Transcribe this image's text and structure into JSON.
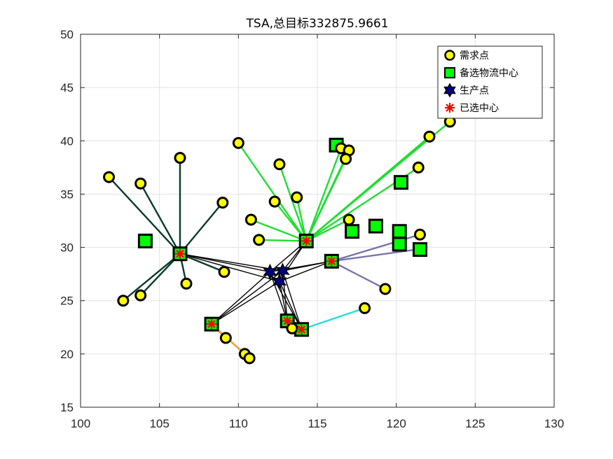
{
  "chart_data": {
    "type": "scatter",
    "title": "TSA,总目标332875.9661",
    "xlabel": "",
    "ylabel": "",
    "xlim": [
      100,
      130
    ],
    "ylim": [
      15,
      50
    ],
    "xticks": [
      100,
      105,
      110,
      115,
      120,
      125,
      130
    ],
    "yticks": [
      15,
      20,
      25,
      30,
      35,
      40,
      45,
      50
    ],
    "grid": true,
    "legend_position": "top-right",
    "legend": [
      {
        "key": "demand",
        "label": "需求点"
      },
      {
        "key": "candidate",
        "label": "备选物流中心"
      },
      {
        "key": "production",
        "label": "生产点"
      },
      {
        "key": "selected",
        "label": "已选中心"
      }
    ],
    "colors": {
      "demand_fill": "#ffff00",
      "candidate_fill": "#00ff00",
      "production_fill": "#000080",
      "selected_mark": "#ff0000",
      "edge_black": "#000000",
      "group_dark": "#0a3a28",
      "group_green": "#22dd33",
      "group_purple": "#7a74a8",
      "group_cyan": "#22dddd",
      "group_orange": "#f0a030",
      "grid": "#e3e3e3"
    },
    "demand_points": [
      [
        101.8,
        36.6
      ],
      [
        103.8,
        36.0
      ],
      [
        106.3,
        38.4
      ],
      [
        109.0,
        34.2
      ],
      [
        109.1,
        27.7
      ],
      [
        106.7,
        26.6
      ],
      [
        103.8,
        25.5
      ],
      [
        102.7,
        25.0
      ],
      [
        110.0,
        39.8
      ],
      [
        112.6,
        37.8
      ],
      [
        112.3,
        34.3
      ],
      [
        113.7,
        34.7
      ],
      [
        110.8,
        32.6
      ],
      [
        111.3,
        30.7
      ],
      [
        116.5,
        39.3
      ],
      [
        117.0,
        39.1
      ],
      [
        116.8,
        38.3
      ],
      [
        122.1,
        40.4
      ],
      [
        123.4,
        41.8
      ],
      [
        121.4,
        37.5
      ],
      [
        117.0,
        32.6
      ],
      [
        121.5,
        31.2
      ],
      [
        119.3,
        26.1
      ],
      [
        118.0,
        24.3
      ],
      [
        109.2,
        21.5
      ],
      [
        110.4,
        20.0
      ],
      [
        110.7,
        19.6
      ],
      [
        113.4,
        22.4
      ]
    ],
    "candidate_centers": [
      [
        104.1,
        30.6
      ],
      [
        106.3,
        29.4
      ],
      [
        116.2,
        39.6
      ],
      [
        120.3,
        36.1
      ],
      [
        118.7,
        32.0
      ],
      [
        117.2,
        31.5
      ],
      [
        120.2,
        31.5
      ],
      [
        120.2,
        30.3
      ],
      [
        121.5,
        29.8
      ],
      [
        114.3,
        30.6
      ],
      [
        115.9,
        28.7
      ],
      [
        108.3,
        22.8
      ],
      [
        113.1,
        23.1
      ],
      [
        114.0,
        22.3
      ]
    ],
    "production_points": [
      [
        112.0,
        27.7
      ],
      [
        112.8,
        27.8
      ],
      [
        112.6,
        26.8
      ]
    ],
    "selected_centers": [
      [
        106.3,
        29.4
      ],
      [
        114.3,
        30.6
      ],
      [
        115.9,
        28.7
      ],
      [
        108.3,
        22.8
      ],
      [
        113.1,
        23.1
      ],
      [
        114.0,
        22.3
      ]
    ],
    "production_links": [
      {
        "from": [
          112.0,
          27.7
        ],
        "to": [
          106.3,
          29.4
        ]
      },
      {
        "from": [
          112.8,
          27.8
        ],
        "to": [
          106.3,
          29.4
        ]
      },
      {
        "from": [
          112.6,
          26.8
        ],
        "to": [
          106.3,
          29.4
        ]
      },
      {
        "from": [
          112.0,
          27.7
        ],
        "to": [
          114.3,
          30.6
        ]
      },
      {
        "from": [
          112.8,
          27.8
        ],
        "to": [
          114.3,
          30.6
        ]
      },
      {
        "from": [
          112.6,
          26.8
        ],
        "to": [
          114.3,
          30.6
        ]
      },
      {
        "from": [
          112.0,
          27.7
        ],
        "to": [
          115.9,
          28.7
        ]
      },
      {
        "from": [
          112.8,
          27.8
        ],
        "to": [
          115.9,
          28.7
        ]
      },
      {
        "from": [
          112.6,
          26.8
        ],
        "to": [
          115.9,
          28.7
        ]
      },
      {
        "from": [
          112.0,
          27.7
        ],
        "to": [
          108.3,
          22.8
        ]
      },
      {
        "from": [
          112.8,
          27.8
        ],
        "to": [
          108.3,
          22.8
        ]
      },
      {
        "from": [
          112.6,
          26.8
        ],
        "to": [
          108.3,
          22.8
        ]
      },
      {
        "from": [
          112.0,
          27.7
        ],
        "to": [
          113.1,
          23.1
        ]
      },
      {
        "from": [
          112.8,
          27.8
        ],
        "to": [
          113.1,
          23.1
        ]
      },
      {
        "from": [
          112.6,
          26.8
        ],
        "to": [
          113.1,
          23.1
        ]
      },
      {
        "from": [
          112.0,
          27.7
        ],
        "to": [
          114.0,
          22.3
        ]
      },
      {
        "from": [
          112.8,
          27.8
        ],
        "to": [
          114.0,
          22.3
        ]
      },
      {
        "from": [
          112.6,
          26.8
        ],
        "to": [
          114.0,
          22.3
        ]
      }
    ],
    "assignment_groups": [
      {
        "center": [
          106.3,
          29.4
        ],
        "color_key": "group_dark",
        "demands": [
          [
            101.8,
            36.6
          ],
          [
            103.8,
            36.0
          ],
          [
            106.3,
            38.4
          ],
          [
            109.0,
            34.2
          ],
          [
            109.1,
            27.7
          ],
          [
            106.7,
            26.6
          ],
          [
            103.8,
            25.5
          ],
          [
            102.7,
            25.0
          ]
        ]
      },
      {
        "center": [
          114.3,
          30.6
        ],
        "color_key": "group_green",
        "demands": [
          [
            110.0,
            39.8
          ],
          [
            112.6,
            37.8
          ],
          [
            112.3,
            34.3
          ],
          [
            113.7,
            34.7
          ],
          [
            110.8,
            32.6
          ],
          [
            111.3,
            30.7
          ],
          [
            116.5,
            39.3
          ],
          [
            117.0,
            39.1
          ],
          [
            116.8,
            38.3
          ],
          [
            122.1,
            40.4
          ],
          [
            123.4,
            41.8
          ],
          [
            121.4,
            37.5
          ],
          [
            117.0,
            32.6
          ]
        ]
      },
      {
        "center": [
          115.9,
          28.7
        ],
        "color_key": "group_purple",
        "demands": [
          [
            121.5,
            31.2
          ],
          [
            119.3,
            26.1
          ],
          [
            121.3,
            29.8
          ]
        ]
      },
      {
        "center": [
          114.0,
          22.3
        ],
        "color_key": "group_cyan",
        "demands": [
          [
            118.0,
            24.3
          ]
        ]
      },
      {
        "center": [
          108.3,
          22.8
        ],
        "color_key": "group_orange",
        "demands": [
          [
            109.2,
            21.5
          ],
          [
            110.4,
            20.0
          ],
          [
            110.7,
            19.6
          ]
        ]
      },
      {
        "center": [
          113.1,
          23.1
        ],
        "color_key": "group_dark",
        "demands": [
          [
            113.4,
            22.4
          ]
        ]
      }
    ]
  }
}
